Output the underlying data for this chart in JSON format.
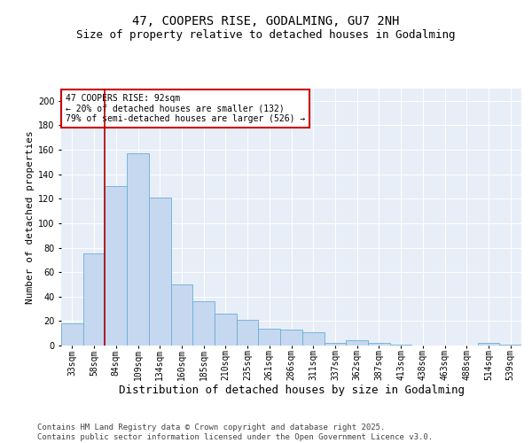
{
  "title1": "47, COOPERS RISE, GODALMING, GU7 2NH",
  "title2": "Size of property relative to detached houses in Godalming",
  "xlabel": "Distribution of detached houses by size in Godalming",
  "ylabel": "Number of detached properties",
  "categories": [
    "33sqm",
    "58sqm",
    "84sqm",
    "109sqm",
    "134sqm",
    "160sqm",
    "185sqm",
    "210sqm",
    "235sqm",
    "261sqm",
    "286sqm",
    "311sqm",
    "337sqm",
    "362sqm",
    "387sqm",
    "413sqm",
    "438sqm",
    "463sqm",
    "488sqm",
    "514sqm",
    "539sqm"
  ],
  "values": [
    18,
    75,
    130,
    157,
    121,
    50,
    36,
    26,
    21,
    14,
    13,
    11,
    2,
    4,
    2,
    1,
    0,
    0,
    0,
    2,
    1
  ],
  "bar_color": "#c5d8ef",
  "bar_edge_color": "#6baed6",
  "vline_x_pos": 1.5,
  "vline_color": "#aa0000",
  "annotation_text": "47 COOPERS RISE: 92sqm\n← 20% of detached houses are smaller (132)\n79% of semi-detached houses are larger (526) →",
  "annotation_box_facecolor": "#ffffff",
  "annotation_box_edgecolor": "#cc0000",
  "ylim": [
    0,
    210
  ],
  "yticks": [
    0,
    20,
    40,
    60,
    80,
    100,
    120,
    140,
    160,
    180,
    200
  ],
  "background_color": "#e8eef7",
  "grid_color": "#ffffff",
  "footer_text": "Contains HM Land Registry data © Crown copyright and database right 2025.\nContains public sector information licensed under the Open Government Licence v3.0.",
  "title1_fontsize": 10,
  "title2_fontsize": 9,
  "xlabel_fontsize": 9,
  "ylabel_fontsize": 8,
  "tick_fontsize": 7,
  "annot_fontsize": 7,
  "footer_fontsize": 6.5
}
